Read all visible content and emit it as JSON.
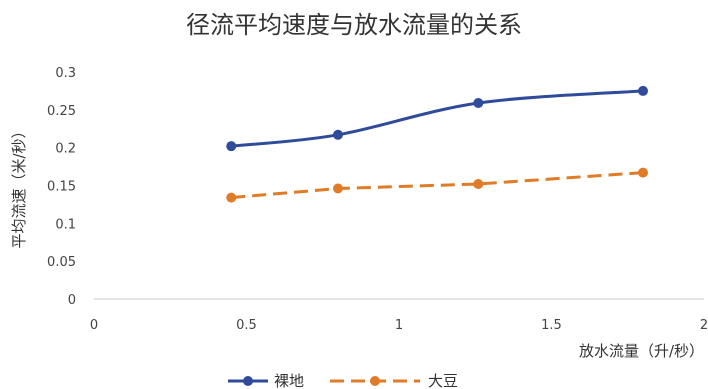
{
  "chart_data": {
    "type": "line",
    "title": "径流平均速度与放水流量的关系",
    "xlabel": "放水流量（升/秒）",
    "ylabel": "平均流速（米/秒）",
    "xlim": [
      0,
      2
    ],
    "ylim": [
      0,
      0.3
    ],
    "x_ticks": [
      "0",
      "0.5",
      "1",
      "1.5",
      "2"
    ],
    "y_ticks": [
      "0",
      "0.05",
      "0.1",
      "0.15",
      "0.2",
      "0.25",
      "0.3"
    ],
    "x": [
      0.45,
      0.8,
      1.26,
      1.8
    ],
    "series": [
      {
        "name": "裸地",
        "values": [
          0.202,
          0.217,
          0.259,
          0.275
        ],
        "color": "#2f4b9a",
        "style": "solid-smooth"
      },
      {
        "name": "大豆",
        "values": [
          0.134,
          0.146,
          0.152,
          0.167
        ],
        "color": "#e07b28",
        "style": "dashed"
      }
    ],
    "grid": false,
    "legend_position": "bottom"
  }
}
